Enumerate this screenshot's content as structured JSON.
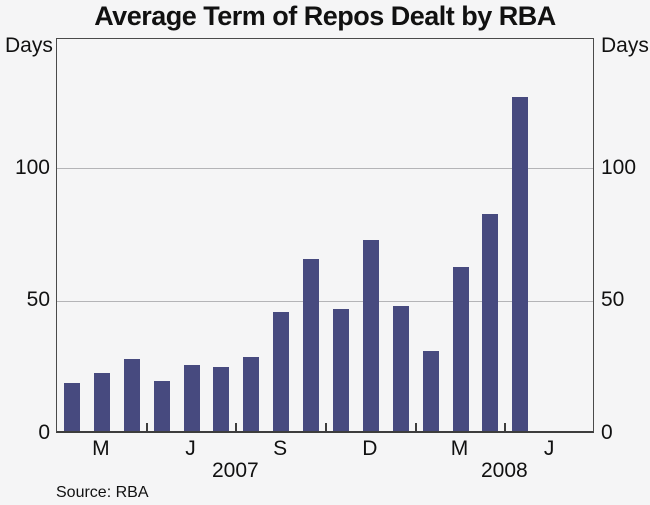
{
  "title": "Average Term of Repos Dealt by RBA",
  "source_note": "Source: RBA",
  "colors": {
    "bar": "#474a7f",
    "gridline": "#b4b4b7",
    "frame": "#4a4a4a",
    "background": "#f5f5f6",
    "text": "#111111"
  },
  "chart_data": {
    "type": "bar",
    "title": "Average Term of Repos Dealt by RBA",
    "unit_label_left": "Days",
    "unit_label_right": "Days",
    "xlabel": "",
    "ylabel": "Days",
    "ylim": [
      0,
      149
    ],
    "grid": "horizontal gridlines at 50 and 100, boxed frame, labels on both sides",
    "legend_position": "none",
    "categories": [
      "Feb 2007",
      "Mar 2007",
      "Apr 2007",
      "May 2007",
      "Jun 2007",
      "Jul 2007",
      "Aug 2007",
      "Sep 2007",
      "Oct 2007",
      "Nov 2007",
      "Dec 2007",
      "Jan 2008",
      "Feb 2008",
      "Mar 2008",
      "Apr 2008",
      "May 2008"
    ],
    "values": [
      18,
      22,
      27,
      19,
      25,
      24,
      28,
      45,
      65,
      46,
      72,
      47,
      30,
      62,
      82,
      126
    ],
    "y_axis": {
      "ticks": [
        0,
        50,
        100
      ],
      "max": 149
    },
    "x_axis": {
      "n_slots": 18,
      "month_labels": [
        {
          "text": "M",
          "slot": 1
        },
        {
          "text": "J",
          "slot": 4
        },
        {
          "text": "S",
          "slot": 7
        },
        {
          "text": "D",
          "slot": 10
        },
        {
          "text": "M",
          "slot": 13
        },
        {
          "text": "J",
          "slot": 16
        }
      ],
      "minor_tick_slots": [
        3,
        6,
        9,
        12,
        15
      ],
      "year_labels": [
        {
          "text": "2007",
          "slot": 6
        },
        {
          "text": "2008",
          "slot": 15
        }
      ]
    },
    "source": "Source: RBA"
  }
}
